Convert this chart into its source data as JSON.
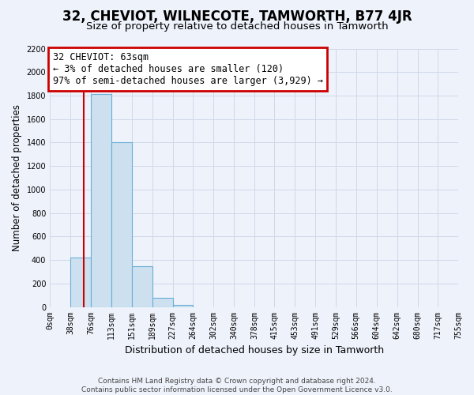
{
  "title": "32, CHEVIOT, WILNECOTE, TAMWORTH, B77 4JR",
  "subtitle": "Size of property relative to detached houses in Tamworth",
  "xlabel": "Distribution of detached houses by size in Tamworth",
  "ylabel": "Number of detached properties",
  "bar_edges": [
    0,
    38,
    76,
    113,
    151,
    189,
    227,
    264,
    302,
    340,
    378,
    415,
    453,
    491,
    529,
    566,
    604,
    642,
    680,
    717,
    755
  ],
  "bar_heights": [
    0,
    420,
    1810,
    1400,
    350,
    75,
    20,
    0,
    0,
    0,
    0,
    0,
    0,
    0,
    0,
    0,
    0,
    0,
    0,
    0
  ],
  "tick_labels": [
    "0sqm",
    "38sqm",
    "76sqm",
    "113sqm",
    "151sqm",
    "189sqm",
    "227sqm",
    "264sqm",
    "302sqm",
    "340sqm",
    "378sqm",
    "415sqm",
    "453sqm",
    "491sqm",
    "529sqm",
    "566sqm",
    "604sqm",
    "642sqm",
    "680sqm",
    "717sqm",
    "755sqm"
  ],
  "bar_color": "#cce0f0",
  "bar_edge_color": "#6baed6",
  "grid_color": "#d0d8e8",
  "red_line_x": 63,
  "annotation_text": "32 CHEVIOT: 63sqm\n← 3% of detached houses are smaller (120)\n97% of semi-detached houses are larger (3,929) →",
  "annotation_box_color": "white",
  "annotation_box_edge_color": "#cc0000",
  "ylim": [
    0,
    2200
  ],
  "yticks": [
    0,
    200,
    400,
    600,
    800,
    1000,
    1200,
    1400,
    1600,
    1800,
    2000,
    2200
  ],
  "footnote": "Contains HM Land Registry data © Crown copyright and database right 2024.\nContains public sector information licensed under the Open Government Licence v3.0.",
  "bg_color": "#eef2fb",
  "plot_bg_color": "#eef2fb",
  "title_fontsize": 12,
  "subtitle_fontsize": 9.5,
  "xlabel_fontsize": 9,
  "ylabel_fontsize": 8.5,
  "tick_fontsize": 7,
  "annotation_fontsize": 8.5,
  "footnote_fontsize": 6.5
}
